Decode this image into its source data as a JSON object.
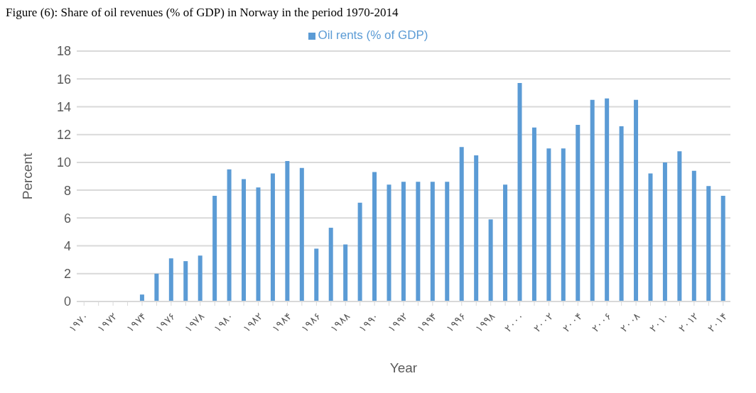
{
  "chart_data": {
    "type": "bar",
    "title": "Figure (6): Share of oil revenues (% of GDP) in Norway in the period 1970-2014",
    "xlabel": "Year",
    "ylabel": "Percent",
    "categories": [
      "۱۹۷۰",
      null,
      "۱۹۷۲",
      null,
      "۱۹۷۴",
      null,
      "۱۹۷۶",
      null,
      "۱۹۷۸",
      null,
      "۱۹۸۰",
      null,
      "۱۹۸۲",
      null,
      "۱۹۸۴",
      null,
      "۱۹۸۶",
      null,
      "۱۹۸۸",
      null,
      "۱۹۹۰",
      null,
      "۱۹۹۲",
      null,
      "۱۹۹۴",
      null,
      "۱۹۹۶",
      null,
      "۱۹۹۸",
      null,
      "۲۰۰۰",
      null,
      "۲۰۰۲",
      null,
      "۲۰۰۴",
      null,
      "۲۰۰۶",
      null,
      "۲۰۰۸",
      null,
      "۲۰۱۰",
      null,
      "۲۰۱۲",
      null,
      "۲۰۱۴"
    ],
    "series": [
      {
        "name": "Oil rents (% of GDP)",
        "color": "#5b9bd5",
        "values": [
          0,
          0,
          0,
          0,
          0.5,
          2.0,
          3.1,
          2.9,
          3.3,
          7.6,
          9.5,
          8.8,
          8.2,
          9.2,
          10.1,
          9.6,
          3.8,
          5.3,
          4.1,
          7.1,
          9.3,
          8.4,
          8.6,
          8.6,
          8.6,
          8.6,
          11.1,
          10.5,
          5.9,
          8.4,
          15.7,
          12.5,
          11.0,
          11.0,
          12.7,
          14.5,
          14.6,
          12.6,
          14.5,
          9.2,
          10.0,
          10.8,
          9.4,
          8.3,
          7.6
        ]
      }
    ],
    "ylim": [
      0,
      18
    ],
    "yticks": [
      0,
      2,
      4,
      6,
      8,
      10,
      12,
      14,
      16,
      18
    ],
    "grid": "y",
    "legend": "top"
  }
}
